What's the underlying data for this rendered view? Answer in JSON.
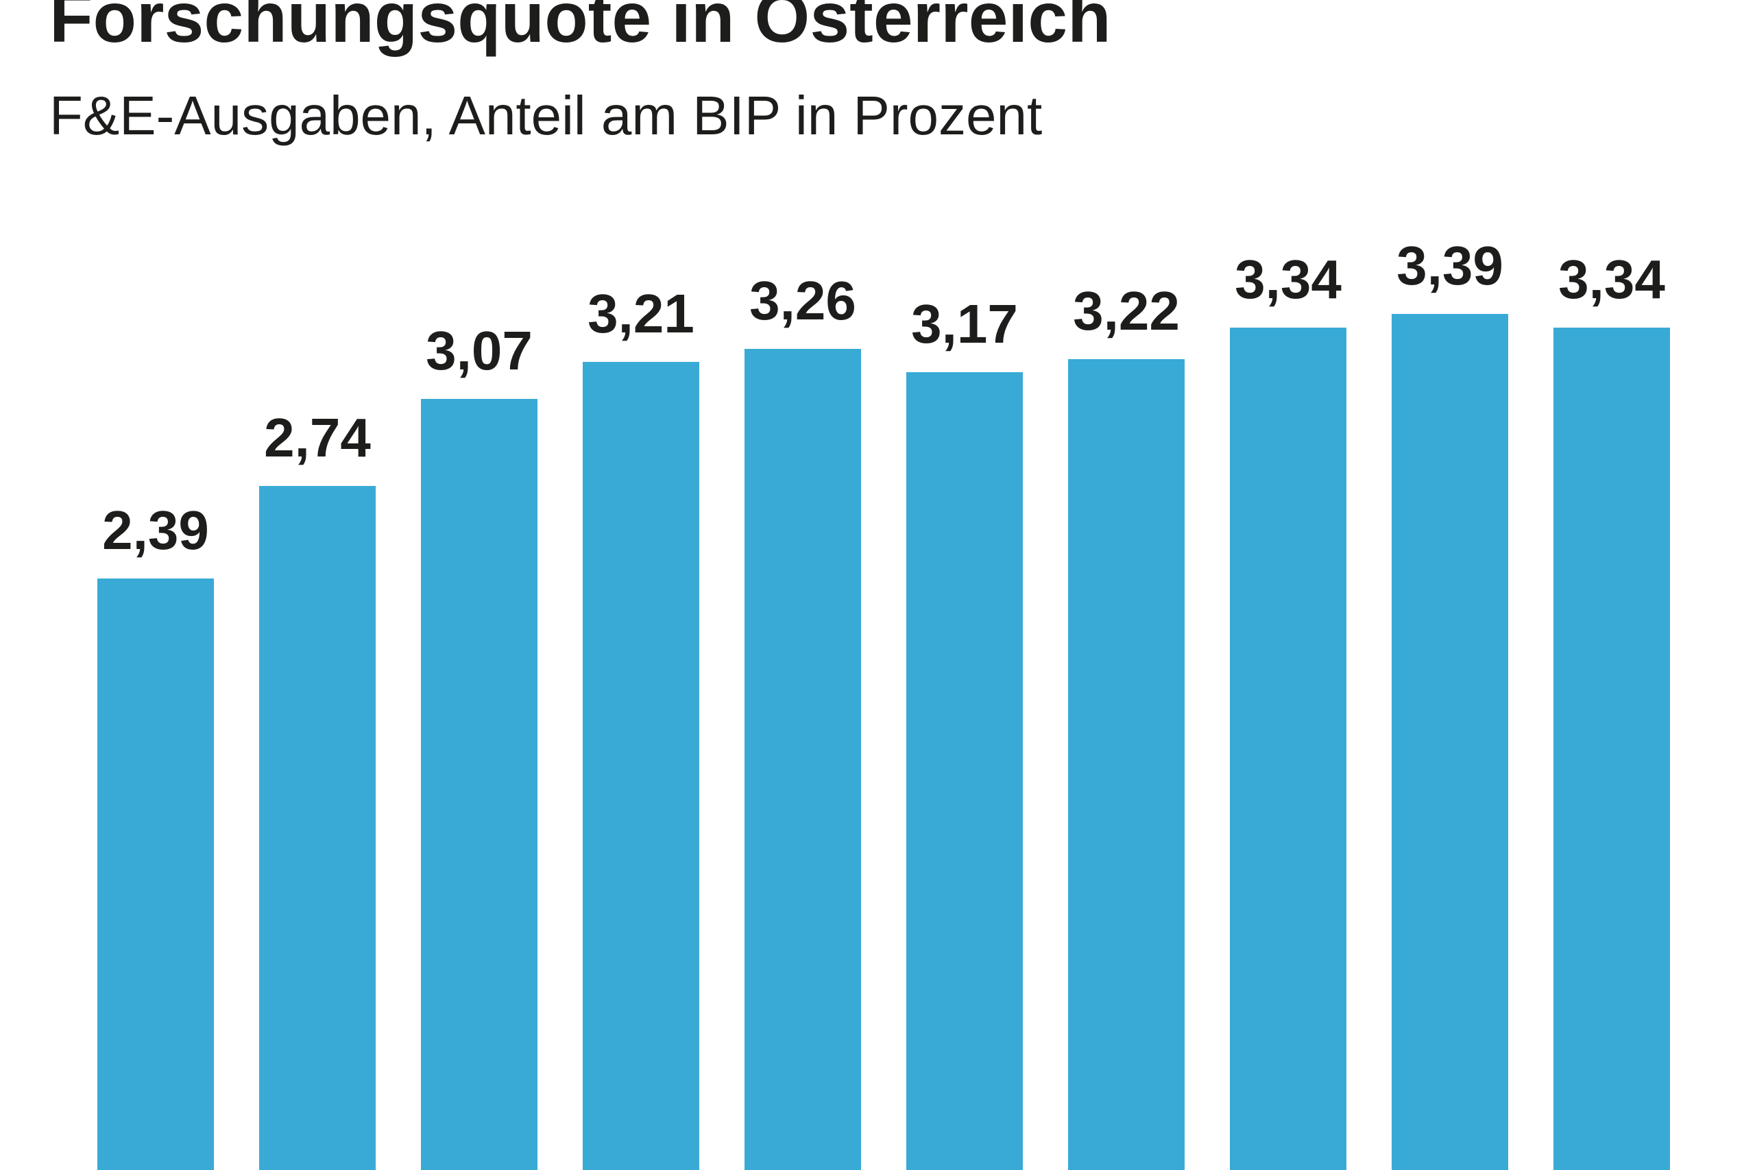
{
  "header": {
    "title": "Forschungsquote in Österreich",
    "subtitle": "F&E-Ausgaben, Anteil am BIP in Prozent"
  },
  "chart_data": {
    "type": "bar",
    "title": "Forschungsquote in Österreich",
    "subtitle": "F&E-Ausgaben, Anteil am BIP in Prozent",
    "values": [
      2.39,
      2.74,
      3.07,
      3.21,
      3.26,
      3.17,
      3.22,
      3.34,
      3.39,
      3.34
    ],
    "value_labels": [
      "2,39",
      "2,74",
      "3,07",
      "3,21",
      "3,26",
      "3,17",
      "3,22",
      "3,34",
      "3,39",
      "3,34"
    ],
    "decimal_separator": ",",
    "bar_color": "#39aad5",
    "text_color": "#1d1d1b",
    "background_color": "#ffffff",
    "ylim": [
      0,
      3.6
    ],
    "grid": false,
    "legend": false,
    "x_axis_labels_visible": false,
    "value_labels_position": "above-bars",
    "bars_cropped_at_bottom": true,
    "title_clipped_at_top": true
  }
}
